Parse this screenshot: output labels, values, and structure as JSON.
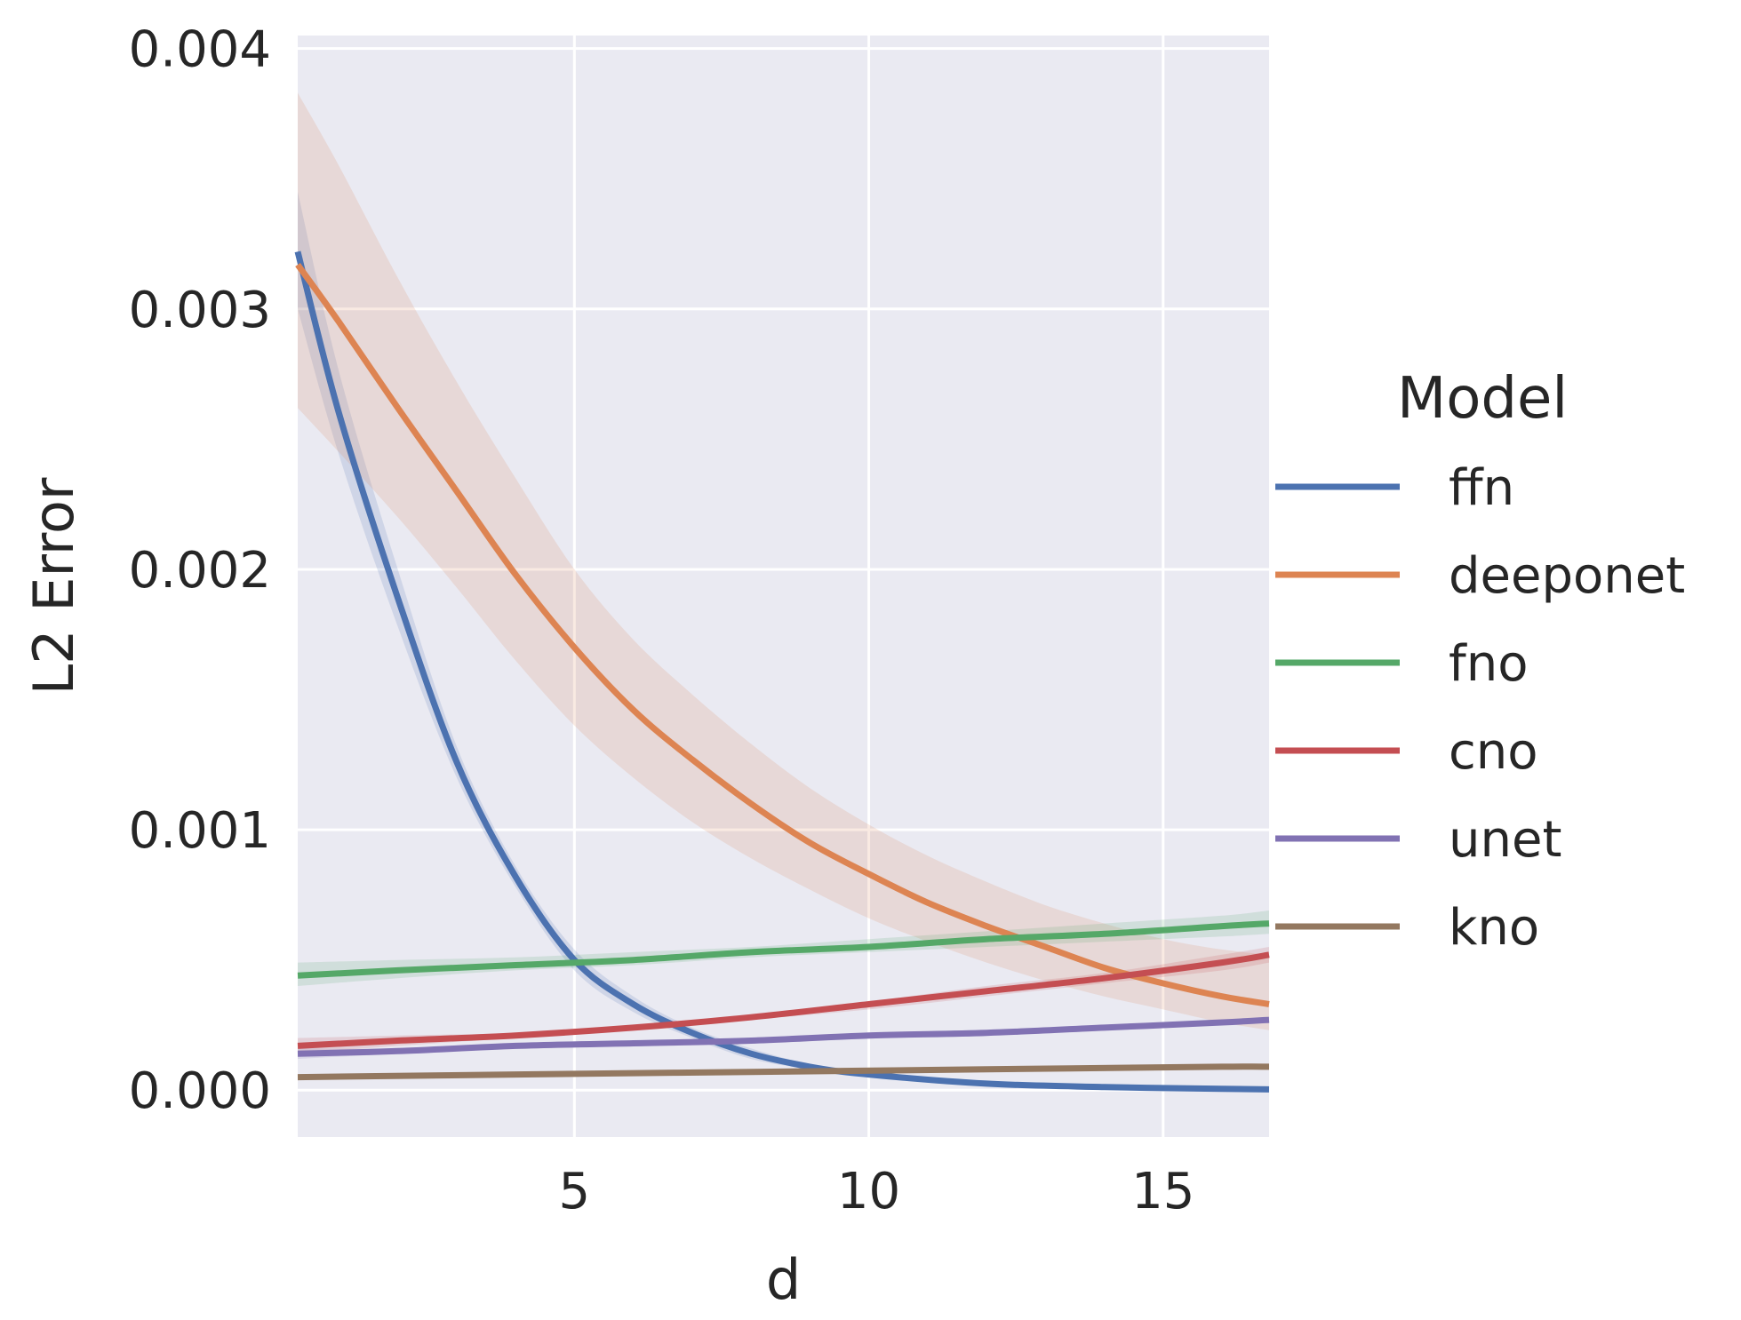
{
  "chart_data": {
    "type": "line",
    "title": "",
    "xlabel": "d",
    "ylabel": "L2 Error",
    "xlim": [
      0.3,
      16.8
    ],
    "ylim": [
      -0.00018,
      0.00405
    ],
    "x_ticks": [
      5,
      10,
      15
    ],
    "x_tick_labels": [
      "5",
      "10",
      "15"
    ],
    "y_ticks": [
      0.0,
      0.001,
      0.002,
      0.003,
      0.004
    ],
    "y_tick_labels": [
      "0.000",
      "0.001",
      "0.002",
      "0.003",
      "0.004"
    ],
    "grid": true,
    "background": "#eaeaf2",
    "legend": {
      "title": "Model",
      "placement": "right"
    },
    "series": [
      {
        "name": "ffn",
        "color": "#4c72b0",
        "x": [
          0.3,
          1,
          2,
          3,
          4,
          5,
          6,
          7,
          8,
          9,
          10,
          12,
          14,
          16,
          16.8
        ],
        "y": [
          0.00322,
          0.0026,
          0.00189,
          0.00126,
          0.00082,
          0.0005,
          0.00033,
          0.00022,
          0.00014,
          9e-05,
          6e-05,
          2.5e-05,
          1.2e-05,
          5e-06,
          3e-06
        ],
        "lower": [
          0.003,
          0.00244,
          0.00178,
          0.0012,
          0.00078,
          0.00046,
          0.0003,
          0.0002,
          0.00012,
          8e-05,
          5e-05,
          2e-05,
          1e-05,
          3e-06,
          1e-06
        ],
        "upper": [
          0.00345,
          0.00276,
          0.002,
          0.00132,
          0.00086,
          0.00054,
          0.00036,
          0.00024,
          0.00016,
          0.0001,
          7e-05,
          3e-05,
          1.4e-05,
          7e-06,
          5e-06
        ]
      },
      {
        "name": "deeponet",
        "color": "#dd8452",
        "x": [
          0.3,
          1,
          2,
          3,
          4,
          5,
          6,
          7,
          8,
          9,
          10,
          11,
          12,
          13,
          14,
          15,
          16,
          16.8
        ],
        "y": [
          0.00317,
          0.00295,
          0.00262,
          0.0023,
          0.00198,
          0.0017,
          0.00146,
          0.00127,
          0.0011,
          0.00095,
          0.00083,
          0.00072,
          0.00063,
          0.00055,
          0.00047,
          0.00041,
          0.00036,
          0.00033
        ],
        "lower": [
          0.00262,
          0.00245,
          0.0022,
          0.00193,
          0.00165,
          0.0014,
          0.0012,
          0.00103,
          0.00089,
          0.00077,
          0.00066,
          0.00057,
          0.00049,
          0.00042,
          0.00036,
          0.00031,
          0.00026,
          0.00023
        ],
        "upper": [
          0.00383,
          0.00355,
          0.00312,
          0.00272,
          0.00235,
          0.002,
          0.00173,
          0.00152,
          0.00133,
          0.00116,
          0.00102,
          0.0009,
          0.0008,
          0.00071,
          0.00064,
          0.00058,
          0.00054,
          0.00052
        ]
      },
      {
        "name": "fno",
        "color": "#55a868",
        "x": [
          0.3,
          2,
          4,
          6,
          8,
          10,
          12,
          14,
          16,
          16.8
        ],
        "y": [
          0.00044,
          0.00046,
          0.00048,
          0.0005,
          0.00053,
          0.00055,
          0.00058,
          0.0006,
          0.00063,
          0.00064
        ],
        "lower": [
          0.0004,
          0.00043,
          0.00046,
          0.00048,
          0.00051,
          0.00053,
          0.00055,
          0.00057,
          0.00059,
          0.0006
        ],
        "upper": [
          0.00049,
          0.0005,
          0.00051,
          0.00053,
          0.00055,
          0.00058,
          0.00061,
          0.00064,
          0.00067,
          0.00069
        ]
      },
      {
        "name": "cno",
        "color": "#c44e52",
        "x": [
          0.3,
          2,
          4,
          6,
          8,
          10,
          12,
          14,
          16,
          16.8
        ],
        "y": [
          0.00017,
          0.00019,
          0.00021,
          0.00024,
          0.00028,
          0.00033,
          0.00038,
          0.00043,
          0.00049,
          0.00052
        ],
        "lower": [
          0.00014,
          0.00017,
          0.0002,
          0.00023,
          0.00027,
          0.00031,
          0.00036,
          0.00041,
          0.00046,
          0.00049
        ],
        "upper": [
          0.0002,
          0.00021,
          0.00022,
          0.00025,
          0.00029,
          0.00034,
          0.0004,
          0.00045,
          0.00052,
          0.00055
        ]
      },
      {
        "name": "unet",
        "color": "#8172b3",
        "x": [
          0.3,
          2,
          4,
          6,
          8,
          10,
          12,
          14,
          16,
          16.8
        ],
        "y": [
          0.00014,
          0.00015,
          0.00017,
          0.00018,
          0.00019,
          0.00021,
          0.00022,
          0.00024,
          0.00026,
          0.00027
        ],
        "lower": [
          0.00012,
          0.00014,
          0.00016,
          0.00017,
          0.00018,
          0.0002,
          0.00021,
          0.00023,
          0.00025,
          0.00026
        ],
        "upper": [
          0.00016,
          0.00016,
          0.00018,
          0.00019,
          0.0002,
          0.00022,
          0.00023,
          0.00025,
          0.00027,
          0.00028
        ]
      },
      {
        "name": "kno",
        "color": "#937860",
        "x": [
          0.3,
          4,
          8,
          12,
          16,
          16.8
        ],
        "y": [
          5e-05,
          6e-05,
          7e-05,
          8e-05,
          9e-05,
          9e-05
        ]
      }
    ]
  }
}
